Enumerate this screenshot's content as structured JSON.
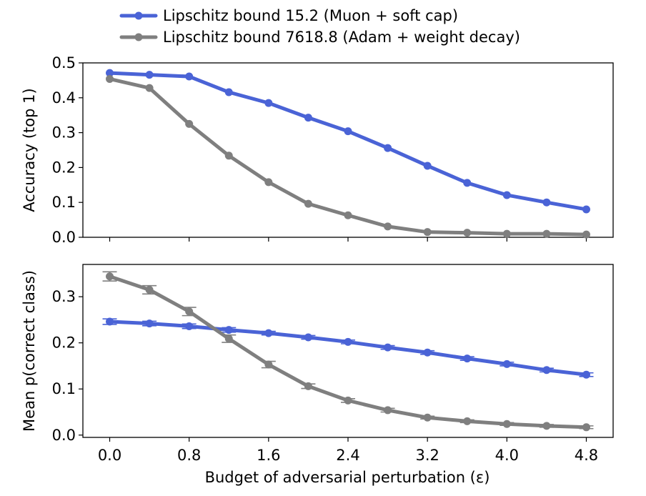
{
  "chart_data": {
    "type": "line",
    "x": [
      0.0,
      0.4,
      0.8,
      1.2,
      1.6,
      2.0,
      2.4,
      2.8,
      3.2,
      3.6,
      4.0,
      4.4,
      4.8
    ],
    "x_ticks": [
      0.0,
      0.8,
      1.6,
      2.4,
      3.2,
      4.0,
      4.8
    ],
    "x_tick_labels": [
      "0.0",
      "0.8",
      "1.6",
      "2.4",
      "3.2",
      "4.0",
      "4.8"
    ],
    "xlim": [
      -0.27,
      5.07
    ],
    "xlabel": "Budget of adversarial perturbation (ε)",
    "legend": {
      "placement": "above plots",
      "entries": [
        {
          "label": "Lipschitz bound 15.2 (Muon + soft cap)",
          "color": "#4a63d6"
        },
        {
          "label": "Lipschitz bound 7618.8 (Adam + weight decay)",
          "color": "#7f7f7f"
        }
      ]
    },
    "panels": [
      {
        "ylabel": "Accuracy (top 1)",
        "ylim": [
          0.0,
          0.5
        ],
        "y_ticks": [
          0.0,
          0.1,
          0.2,
          0.3,
          0.4,
          0.5
        ],
        "y_tick_labels": [
          "0.0",
          "0.1",
          "0.2",
          "0.3",
          "0.4",
          "0.5"
        ],
        "series": [
          {
            "name": "Lipschitz bound 15.2 (Muon + soft cap)",
            "color": "#4a63d6",
            "values": [
              0.471,
              0.466,
              0.461,
              0.416,
              0.385,
              0.343,
              0.304,
              0.256,
              0.205,
              0.156,
              0.121,
              0.1,
              0.08
            ]
          },
          {
            "name": "Lipschitz bound 7618.8 (Adam + weight decay)",
            "color": "#7f7f7f",
            "values": [
              0.454,
              0.428,
              0.325,
              0.234,
              0.158,
              0.096,
              0.063,
              0.031,
              0.015,
              0.013,
              0.01,
              0.01,
              0.008
            ]
          }
        ]
      },
      {
        "ylabel": "Mean p(correct class)",
        "ylim": [
          -0.005,
          0.37
        ],
        "y_ticks": [
          0.0,
          0.1,
          0.2,
          0.3
        ],
        "y_tick_labels": [
          "0.0",
          "0.1",
          "0.2",
          "0.3"
        ],
        "series": [
          {
            "name": "Lipschitz bound 15.2 (Muon + soft cap)",
            "color": "#4a63d6",
            "values": [
              0.246,
              0.242,
              0.236,
              0.228,
              0.221,
              0.212,
              0.202,
              0.19,
              0.179,
              0.166,
              0.154,
              0.141,
              0.131
            ],
            "errors": [
              0.006,
              0.005,
              0.005,
              0.005,
              0.004,
              0.004,
              0.004,
              0.004,
              0.004,
              0.004,
              0.004,
              0.004,
              0.004
            ]
          },
          {
            "name": "Lipschitz bound 7618.8 (Adam + weight decay)",
            "color": "#7f7f7f",
            "values": [
              0.344,
              0.315,
              0.268,
              0.209,
              0.153,
              0.106,
              0.075,
              0.054,
              0.038,
              0.03,
              0.024,
              0.02,
              0.017
            ],
            "errors": [
              0.01,
              0.009,
              0.009,
              0.008,
              0.007,
              0.005,
              0.004,
              0.004,
              0.003,
              0.003,
              0.003,
              0.003,
              0.003
            ]
          }
        ]
      }
    ]
  }
}
